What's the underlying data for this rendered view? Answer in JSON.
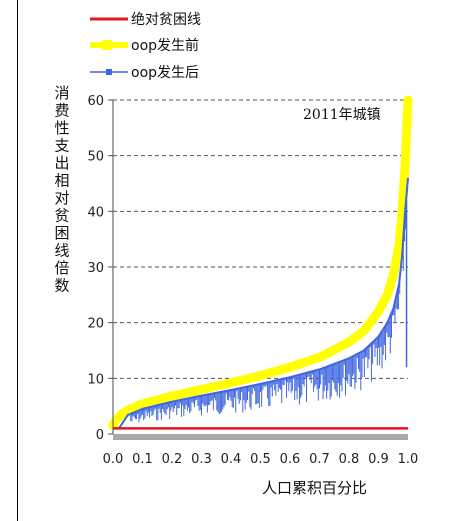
{
  "chart_data": {
    "type": "line",
    "xlabel": "人口累积百分比",
    "ylabel": "消费性支出相对贫困线倍数",
    "annotation": "2011年城镇",
    "xlim": [
      0,
      1
    ],
    "ylim": [
      0,
      60
    ],
    "x_ticks": [
      "0.0",
      "0.1",
      "0.2",
      "0.3",
      "0.4",
      "0.5",
      "0.6",
      "0.7",
      "0.8",
      "0.9",
      "1.0"
    ],
    "y_ticks": [
      "0",
      "10",
      "20",
      "30",
      "40",
      "50",
      "60"
    ],
    "grid": "horizontal dashed",
    "legend_position": "top-left",
    "series": [
      {
        "name": "绝对贫困线",
        "color": "#e8141b",
        "x": [
          0,
          1
        ],
        "y": [
          1,
          1
        ]
      },
      {
        "name": "oop发生前",
        "color": "#ffff00",
        "x": [
          0,
          0.01,
          0.03,
          0.05,
          0.1,
          0.2,
          0.3,
          0.4,
          0.5,
          0.6,
          0.7,
          0.8,
          0.85,
          0.9,
          0.93,
          0.95,
          0.97,
          0.98,
          0.99,
          0.995,
          1.0
        ],
        "y": [
          1.5,
          2.5,
          3.6,
          4.3,
          5.4,
          6.8,
          8.0,
          9.2,
          10.5,
          12.0,
          13.8,
          16.5,
          18.5,
          22.0,
          25.0,
          28.5,
          34.0,
          40.0,
          48.0,
          54.0,
          60.0
        ]
      },
      {
        "name": "oop发生后",
        "color": "#3f66e0",
        "x": [
          0.02,
          0.05,
          0.1,
          0.2,
          0.3,
          0.4,
          0.5,
          0.6,
          0.7,
          0.8,
          0.85,
          0.9,
          0.93,
          0.95,
          0.97,
          0.98,
          0.99,
          1.0
        ],
        "y": [
          1.0,
          3.4,
          4.5,
          5.8,
          6.9,
          7.9,
          9.0,
          10.2,
          11.6,
          13.6,
          15.0,
          17.5,
          20.0,
          22.5,
          27.0,
          32.0,
          40.0,
          46.0
        ]
      }
    ]
  }
}
